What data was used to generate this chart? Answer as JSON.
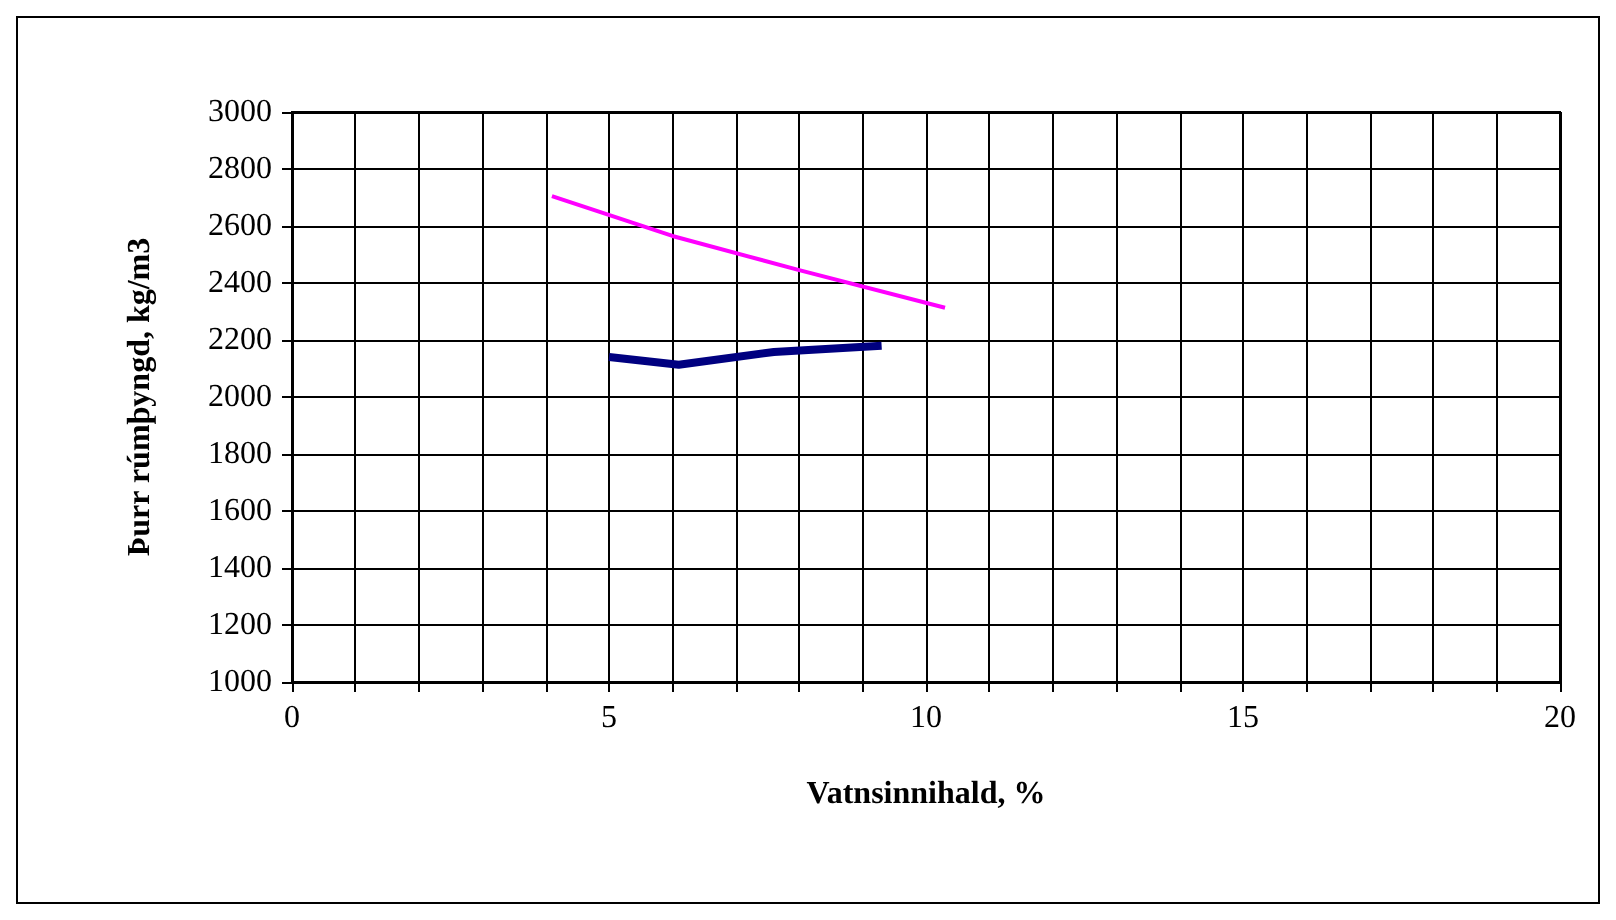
{
  "chart_data": {
    "type": "line",
    "xlabel": "Vatnsinnihald, %",
    "ylabel": "Þurr rúmþyngd, kg/m3",
    "xlim": [
      0,
      20
    ],
    "xticks": [
      0,
      {
        "value": 1,
        "label": null
      },
      {
        "value": 2,
        "label": null
      },
      {
        "value": 3,
        "label": null
      },
      {
        "value": 4,
        "label": null
      },
      5,
      {
        "value": 6,
        "label": null
      },
      {
        "value": 7,
        "label": null
      },
      {
        "value": 8,
        "label": null
      },
      {
        "value": 9,
        "label": null
      },
      10,
      {
        "value": 11,
        "label": null
      },
      {
        "value": 12,
        "label": null
      },
      {
        "value": 13,
        "label": null
      },
      {
        "value": 14,
        "label": null
      },
      15,
      {
        "value": 16,
        "label": null
      },
      {
        "value": 17,
        "label": null
      },
      {
        "value": 18,
        "label": null
      },
      {
        "value": 19,
        "label": null
      },
      20
    ],
    "ylim": [
      1000,
      3000
    ],
    "yticks": [
      1000,
      1200,
      1400,
      1600,
      1800,
      2000,
      2200,
      2400,
      2600,
      2800,
      3000
    ],
    "grid": true,
    "marker": "none",
    "line_style": "solid",
    "series": [
      {
        "color": "#ff00ff",
        "x": [
          4.1,
          6.0,
          8.0,
          10.3
        ],
        "values": [
          2705,
          2565,
          2445,
          2313
        ]
      },
      {
        "color": "#000080",
        "x": [
          5.0,
          6.1,
          7.6,
          9.3
        ],
        "values": [
          2140,
          2113,
          2158,
          2180
        ]
      }
    ]
  }
}
